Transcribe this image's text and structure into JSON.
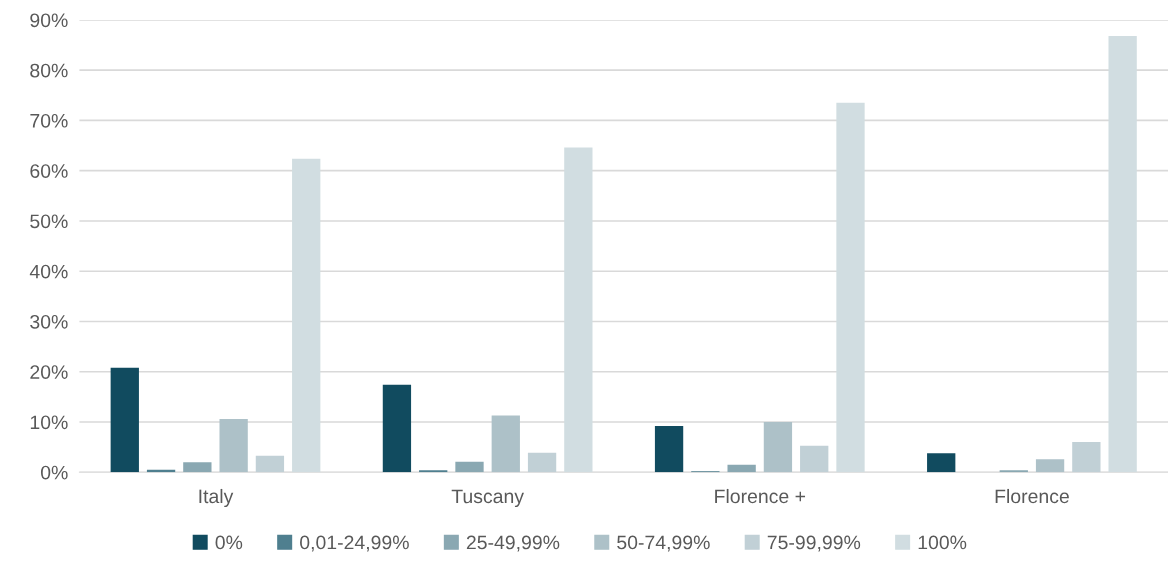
{
  "chart_data": {
    "type": "bar",
    "categories": [
      "Italy",
      "Tuscany",
      "Florence +",
      "Florence"
    ],
    "series": [
      {
        "name": "0%",
        "color": "#114b5f",
        "values": [
          20.8,
          17.4,
          9.2,
          3.8
        ]
      },
      {
        "name": "0,01-24,99%",
        "color": "#4f7f8f",
        "values": [
          0.5,
          0.4,
          0.2,
          0.0
        ]
      },
      {
        "name": "25-49,99%",
        "color": "#8aa8b2",
        "values": [
          2.0,
          2.1,
          1.5,
          0.4
        ]
      },
      {
        "name": "50-74,99%",
        "color": "#adc1c8",
        "values": [
          10.6,
          11.3,
          10.0,
          2.6
        ]
      },
      {
        "name": "75-99,99%",
        "color": "#c1d0d6",
        "values": [
          3.3,
          3.9,
          5.3,
          6.0
        ]
      },
      {
        "name": "100%",
        "color": "#d1dde1",
        "values": [
          62.4,
          64.6,
          73.5,
          86.8
        ]
      }
    ],
    "ylim": [
      0,
      90
    ],
    "yticks": [
      {
        "value": 0,
        "label": "0%"
      },
      {
        "value": 10,
        "label": "10%"
      },
      {
        "value": 20,
        "label": "20%"
      },
      {
        "value": 30,
        "label": "30%"
      },
      {
        "value": 40,
        "label": "40%"
      },
      {
        "value": 50,
        "label": "50%"
      },
      {
        "value": 60,
        "label": "60%"
      },
      {
        "value": 70,
        "label": "70%"
      },
      {
        "value": 80,
        "label": "80%"
      },
      {
        "value": 90,
        "label": "90%"
      }
    ],
    "grid": "y",
    "legend": "bottom"
  }
}
